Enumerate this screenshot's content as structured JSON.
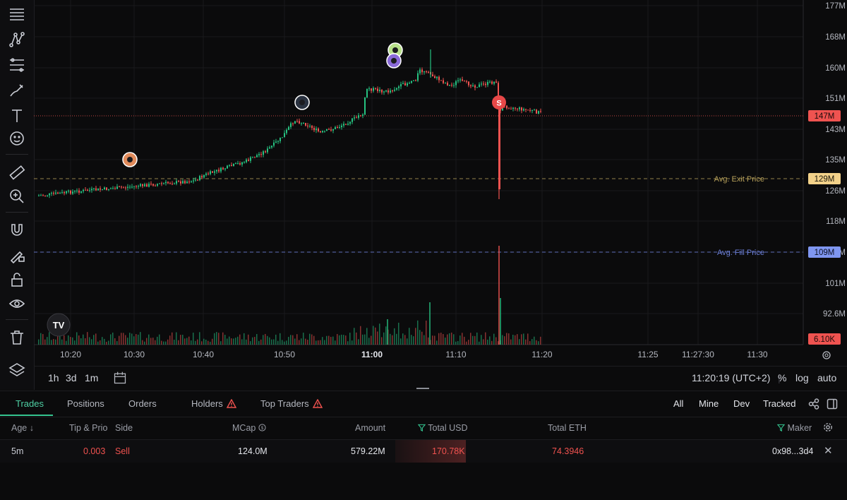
{
  "toolbar": {
    "tools": [
      "crosshair-menu-icon",
      "trend-line-icon",
      "fib-retracement-icon",
      "brush-icon",
      "text-icon",
      "emoji-icon",
      "ruler-icon",
      "zoom-icon",
      "magnet-icon",
      "lock-drawing-icon",
      "lock-icon",
      "eye-icon",
      "trash-icon",
      "layers-icon"
    ]
  },
  "chart_data": {
    "type": "candlestick",
    "price_axis": [
      "177M",
      "168M",
      "160M",
      "151M",
      "143M",
      "135M",
      "126M",
      "118M",
      "109M",
      "101M",
      "92.6M"
    ],
    "time_axis": [
      "10:20",
      "10:30",
      "10:40",
      "10:50",
      "11:00",
      "11:10",
      "11:20",
      "11:25",
      "11:27:30",
      "11:30"
    ],
    "current_price_label": "147M",
    "avg_exit": {
      "label": "Avg. Exit Price",
      "value": "129M",
      "color": "#b6a05a"
    },
    "avg_fill": {
      "label": "Avg. Fill Price",
      "value": "109M",
      "color": "#6c7fd8"
    },
    "volume_label": "6.10K",
    "markers": [
      {
        "type": "trader-avatar",
        "time": "10:27"
      },
      {
        "type": "trader-avatar",
        "time": "10:52"
      },
      {
        "type": "trader-avatar",
        "time": "11:03"
      },
      {
        "type": "trader-avatar",
        "time": "11:03"
      },
      {
        "type": "sell",
        "label": "S",
        "time": "11:15"
      }
    ],
    "series_colors": {
      "up": "#26c281",
      "down": "#ef5350"
    }
  },
  "timebar": {
    "intervals": [
      "1h",
      "3d",
      "1m"
    ],
    "clock": "11:20:19 (UTC+2)",
    "percent": "%",
    "log": "log",
    "auto": "auto"
  },
  "tabs": {
    "items": [
      "Trades",
      "Positions",
      "Orders",
      "Holders",
      "Top Traders"
    ],
    "filters": [
      "All",
      "Mine",
      "Dev",
      "Tracked"
    ]
  },
  "table": {
    "headers": {
      "age": "Age",
      "tip": "Tip & Prio",
      "side": "Side",
      "mcap": "MCap",
      "amount": "Amount",
      "total_usd": "Total USD",
      "total_eth": "Total ETH",
      "maker": "Maker"
    },
    "rows": [
      {
        "age": "5m",
        "tip": "0.003",
        "side": "Sell",
        "mcap": "124.0M",
        "amount": "579.22M",
        "total_usd": "170.78K",
        "total_eth": "74.3946",
        "maker": "0x98...3d4"
      }
    ]
  }
}
